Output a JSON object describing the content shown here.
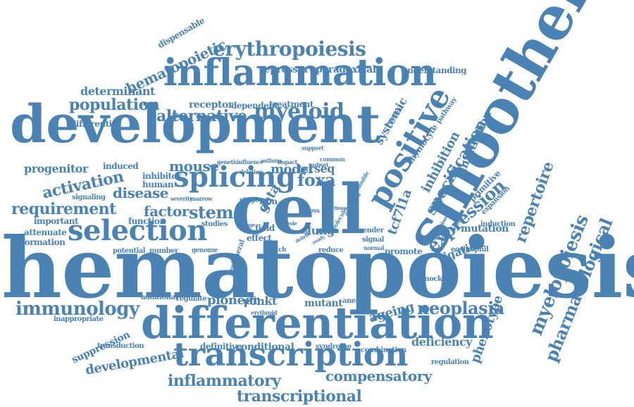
{
  "color": "#4a82b4",
  "words": [
    "hematopoiesis",
    "cell",
    "development",
    "smoothened",
    "differentiation",
    "inflammation",
    "transcription",
    "positive",
    "splicing",
    "selection",
    "erythropoiesis",
    "myelopoiesis",
    "pharmacological",
    "repertoire",
    "myeloid",
    "immunology",
    "neoplasia",
    "expression",
    "specification",
    "hematopoietic",
    "population",
    "alternative",
    "determinant",
    "progenitor",
    "activation",
    "requirement",
    "mouse",
    "disease",
    "factor",
    "stem",
    "model",
    "tcrseq",
    "foxa",
    "gata",
    "inhibition",
    "infiltration",
    "tcf7l1a",
    "compensatory",
    "inflammatory",
    "transcriptional",
    "ageing",
    "phenotype",
    "developmental",
    "suppression",
    "deficiency",
    "mutation",
    "ligation",
    "lung",
    "pioneer",
    "γδnkt",
    "mutant",
    "conditional",
    "definitive",
    "receptor",
    "repressor",
    "paradoxical",
    "understanding",
    "systemic",
    "thymocyte",
    "pathway",
    "primitive",
    "expansion",
    "induction",
    "eosinophil",
    "knockout",
    "anemia",
    "regulation",
    "combination",
    "syndrome",
    "transduction",
    "inappropriate",
    "additional",
    "regulate",
    "erythroid",
    "important",
    "function",
    "attenuate",
    "formation",
    "potential",
    "number",
    "genome",
    "studies",
    "peripheral",
    "notch",
    "reduce",
    "promote",
    "signal",
    "normal",
    "render",
    "dispensable",
    "differential",
    "dependent",
    "treatment",
    "signaling",
    "human",
    "inhibitor",
    "induced",
    "severity",
    "marrow",
    "genetic",
    "influence",
    "asthma",
    "impact",
    "subset",
    "common",
    "deletion",
    "double",
    "growth",
    "support",
    "field",
    "effect",
    "iron",
    "range",
    "loss",
    "role",
    "many",
    "molecule",
    "tissue",
    "observed",
    "feature",
    "debris",
    "lineage",
    "ready",
    "augment",
    "stage"
  ]
}
